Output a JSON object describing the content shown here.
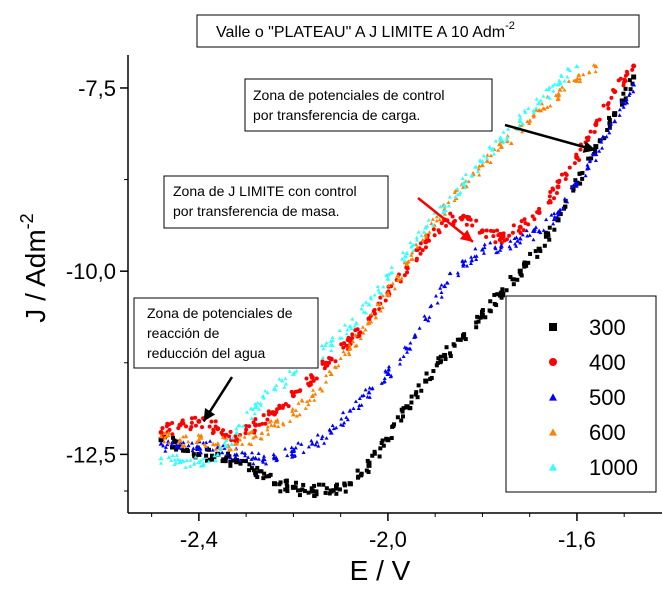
{
  "chart_data": {
    "type": "scatter",
    "title": "Valle o \"PLATEAU\" A J LIMITE A 10 Adm",
    "title_superscript": "-2",
    "xlabel": "E / V",
    "ylabel": "J / Adm",
    "ylabel_superscript": "-2",
    "xlim": [
      -2.55,
      -1.42
    ],
    "ylim": [
      -13.3,
      -7.05
    ],
    "xticks": [
      -2.4,
      -2.0,
      -1.6
    ],
    "xtick_labels": [
      "-2,4",
      "-2,0",
      "-1,6"
    ],
    "yticks": [
      -12.5,
      -10.0,
      -7.5
    ],
    "ytick_labels": [
      "-12,5",
      "-10,0",
      "-7,5"
    ],
    "legend_position": "lower-right",
    "series": [
      {
        "name": "300",
        "color": "#000000",
        "marker": "square",
        "points": [
          [
            -2.48,
            -12.3
          ],
          [
            -2.44,
            -12.4
          ],
          [
            -2.4,
            -12.5
          ],
          [
            -2.36,
            -12.5
          ],
          [
            -2.32,
            -12.6
          ],
          [
            -2.28,
            -12.75
          ],
          [
            -2.24,
            -12.9
          ],
          [
            -2.2,
            -12.95
          ],
          [
            -2.16,
            -13.0
          ],
          [
            -2.12,
            -13.0
          ],
          [
            -2.08,
            -12.9
          ],
          [
            -2.04,
            -12.65
          ],
          [
            -2.0,
            -12.3
          ],
          [
            -1.96,
            -11.85
          ],
          [
            -1.92,
            -11.5
          ],
          [
            -1.88,
            -11.15
          ],
          [
            -1.84,
            -10.9
          ],
          [
            -1.8,
            -10.6
          ],
          [
            -1.76,
            -10.3
          ],
          [
            -1.72,
            -10.0
          ],
          [
            -1.68,
            -9.7
          ],
          [
            -1.64,
            -9.3
          ],
          [
            -1.6,
            -8.8
          ],
          [
            -1.56,
            -8.3
          ],
          [
            -1.52,
            -7.85
          ],
          [
            -1.48,
            -7.35
          ]
        ]
      },
      {
        "name": "400",
        "color": "#ff0000",
        "marker": "circle",
        "points": [
          [
            -2.48,
            -12.2
          ],
          [
            -2.44,
            -12.1
          ],
          [
            -2.4,
            -12.05
          ],
          [
            -2.36,
            -12.15
          ],
          [
            -2.32,
            -12.3
          ],
          [
            -2.28,
            -12.1
          ],
          [
            -2.24,
            -11.95
          ],
          [
            -2.2,
            -11.7
          ],
          [
            -2.16,
            -11.45
          ],
          [
            -2.12,
            -11.2
          ],
          [
            -2.08,
            -10.95
          ],
          [
            -2.04,
            -10.65
          ],
          [
            -2.0,
            -10.3
          ],
          [
            -1.96,
            -9.95
          ],
          [
            -1.92,
            -9.6
          ],
          [
            -1.88,
            -9.3
          ],
          [
            -1.84,
            -9.25
          ],
          [
            -1.8,
            -9.45
          ],
          [
            -1.76,
            -9.55
          ],
          [
            -1.72,
            -9.4
          ],
          [
            -1.68,
            -9.2
          ],
          [
            -1.64,
            -8.85
          ],
          [
            -1.6,
            -8.45
          ],
          [
            -1.56,
            -8.0
          ],
          [
            -1.52,
            -7.55
          ],
          [
            -1.48,
            -7.2
          ]
        ]
      },
      {
        "name": "500",
        "color": "#0000ff",
        "marker": "triangle",
        "points": [
          [
            -2.48,
            -12.35
          ],
          [
            -2.44,
            -12.4
          ],
          [
            -2.4,
            -12.4
          ],
          [
            -2.36,
            -12.4
          ],
          [
            -2.32,
            -12.5
          ],
          [
            -2.28,
            -12.55
          ],
          [
            -2.24,
            -12.55
          ],
          [
            -2.2,
            -12.45
          ],
          [
            -2.16,
            -12.35
          ],
          [
            -2.12,
            -12.2
          ],
          [
            -2.08,
            -11.9
          ],
          [
            -2.04,
            -11.65
          ],
          [
            -2.0,
            -11.4
          ],
          [
            -1.96,
            -11.05
          ],
          [
            -1.92,
            -10.65
          ],
          [
            -1.88,
            -10.2
          ],
          [
            -1.84,
            -9.9
          ],
          [
            -1.8,
            -9.7
          ],
          [
            -1.76,
            -9.65
          ],
          [
            -1.72,
            -9.55
          ],
          [
            -1.68,
            -9.45
          ],
          [
            -1.64,
            -9.2
          ],
          [
            -1.6,
            -8.8
          ],
          [
            -1.56,
            -8.4
          ],
          [
            -1.52,
            -7.95
          ],
          [
            -1.48,
            -7.45
          ]
        ]
      },
      {
        "name": "600",
        "color": "#ff8000",
        "marker": "triangle",
        "points": [
          [
            -2.48,
            -12.25
          ],
          [
            -2.44,
            -12.3
          ],
          [
            -2.4,
            -12.3
          ],
          [
            -2.36,
            -12.35
          ],
          [
            -2.32,
            -12.35
          ],
          [
            -2.28,
            -12.25
          ],
          [
            -2.24,
            -12.1
          ],
          [
            -2.2,
            -11.95
          ],
          [
            -2.16,
            -11.7
          ],
          [
            -2.12,
            -11.4
          ],
          [
            -2.08,
            -11.05
          ],
          [
            -2.04,
            -10.7
          ],
          [
            -2.0,
            -10.3
          ],
          [
            -1.96,
            -9.9
          ],
          [
            -1.92,
            -9.5
          ],
          [
            -1.88,
            -9.15
          ],
          [
            -1.84,
            -8.85
          ],
          [
            -1.8,
            -8.55
          ],
          [
            -1.76,
            -8.3
          ],
          [
            -1.72,
            -8.05
          ],
          [
            -1.68,
            -7.8
          ],
          [
            -1.64,
            -7.6
          ],
          [
            -1.6,
            -7.4
          ],
          [
            -1.56,
            -7.2
          ]
        ]
      },
      {
        "name": "1000",
        "color": "#33ffff",
        "marker": "triangle",
        "points": [
          [
            -2.48,
            -12.55
          ],
          [
            -2.44,
            -12.6
          ],
          [
            -2.4,
            -12.6
          ],
          [
            -2.36,
            -12.5
          ],
          [
            -2.32,
            -12.2
          ],
          [
            -2.28,
            -11.85
          ],
          [
            -2.24,
            -11.6
          ],
          [
            -2.2,
            -11.4
          ],
          [
            -2.16,
            -11.2
          ],
          [
            -2.12,
            -11.0
          ],
          [
            -2.08,
            -10.75
          ],
          [
            -2.04,
            -10.45
          ],
          [
            -2.0,
            -10.1
          ],
          [
            -1.96,
            -9.75
          ],
          [
            -1.92,
            -9.4
          ],
          [
            -1.88,
            -9.1
          ],
          [
            -1.84,
            -8.8
          ],
          [
            -1.8,
            -8.5
          ],
          [
            -1.76,
            -8.2
          ],
          [
            -1.72,
            -7.95
          ],
          [
            -1.68,
            -7.7
          ],
          [
            -1.64,
            -7.45
          ],
          [
            -1.6,
            -7.2
          ]
        ]
      }
    ],
    "annotations": [
      {
        "lines": [
          "Zona de potenciales de control",
          "por transferencia de carga."
        ],
        "arrow_color": "#000000",
        "arrow_to": [
          -1.56,
          -8.35
        ]
      },
      {
        "lines": [
          "Zona de J LIMITE con control",
          "por transferencia de masa."
        ],
        "arrow_color": "#ff0000",
        "arrow_to": [
          -1.82,
          -9.6
        ]
      },
      {
        "lines": [
          "Zona de potenciales de",
          "reacción de",
          "reducción del agua"
        ],
        "arrow_color": "#000000",
        "arrow_to": [
          -2.39,
          -12.05
        ]
      }
    ]
  }
}
